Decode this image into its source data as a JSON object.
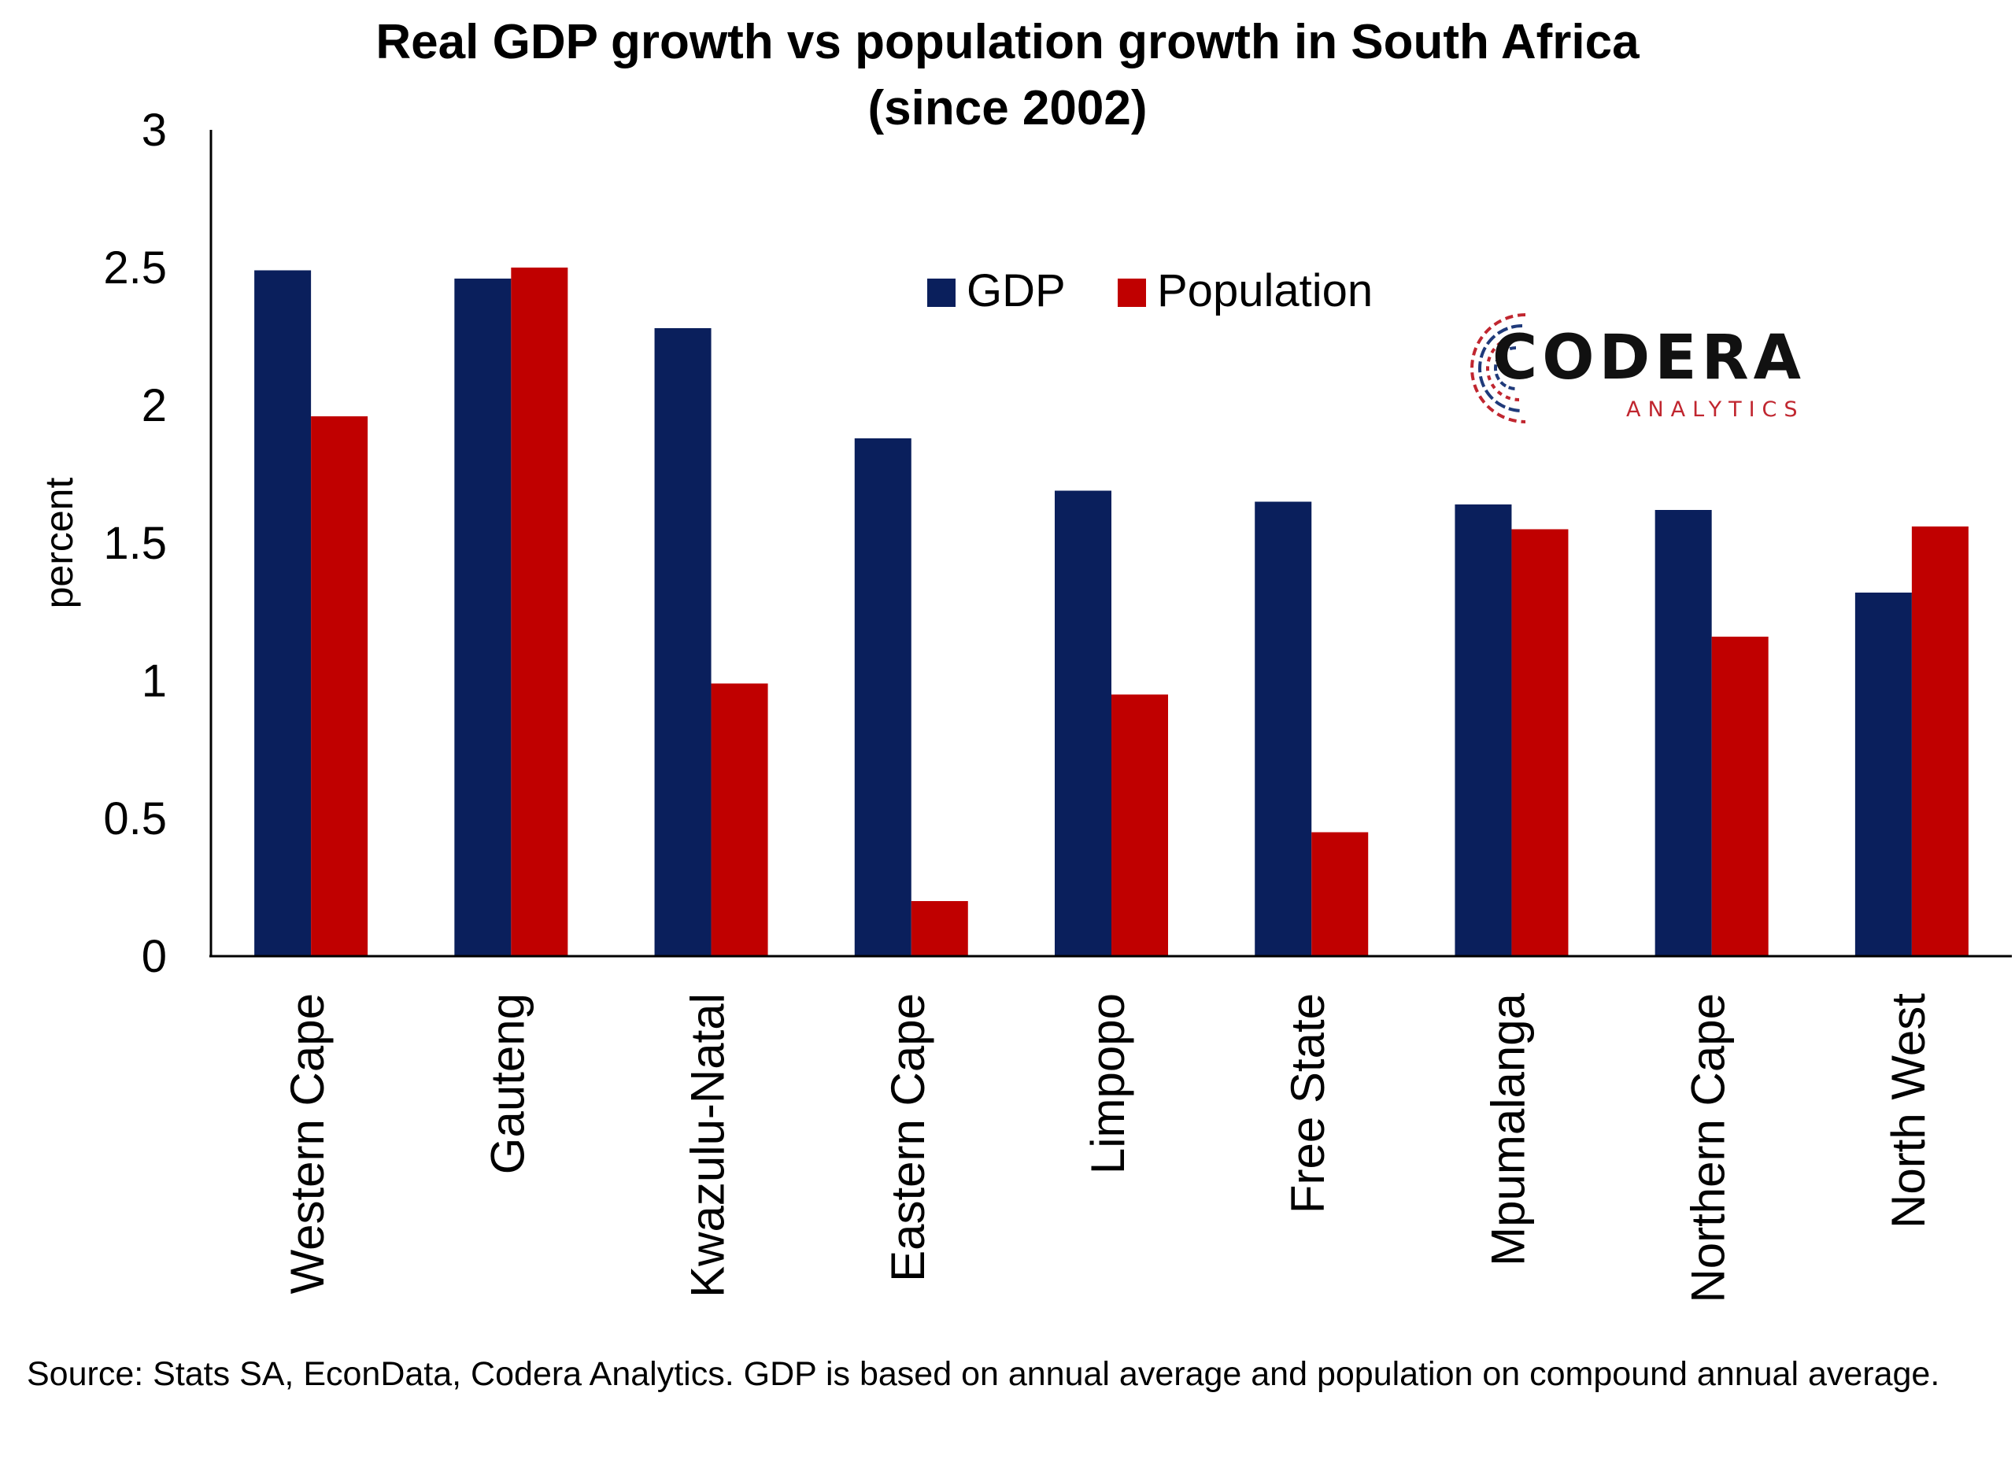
{
  "title_line1": "Real GDP growth vs population growth in South Africa",
  "title_line2": "(since 2002)",
  "source_note": "Source: Stats SA, EconData, Codera Analytics. GDP is based on annual average and population on compound annual average.",
  "logo": {
    "word": "CODERA",
    "sub": "ANALYTICS"
  },
  "colors": {
    "gdp": "#0a1f5c",
    "population": "#c00000"
  },
  "chart_data": {
    "type": "bar",
    "title": "Real GDP growth vs population growth in South Africa (since 2002)",
    "xlabel": "",
    "ylabel": "percent",
    "ylim": [
      0,
      3
    ],
    "yticks": [
      "0",
      "0.5",
      "1",
      "1.5",
      "2",
      "2.5",
      "3"
    ],
    "grid": false,
    "legend_position": "top-center",
    "categories": [
      "Western Cape",
      "Gauteng",
      "Kwazulu-Natal",
      "Eastern Cape",
      "Limpopo",
      "Free State",
      "Mpumalanga",
      "Northern Cape",
      "North West"
    ],
    "series": [
      {
        "name": "GDP",
        "values": [
          2.49,
          2.46,
          2.28,
          1.88,
          1.69,
          1.65,
          1.64,
          1.62,
          1.32
        ]
      },
      {
        "name": "Population",
        "values": [
          1.96,
          2.5,
          0.99,
          0.2,
          0.95,
          0.45,
          1.55,
          1.16,
          1.56
        ]
      }
    ]
  }
}
